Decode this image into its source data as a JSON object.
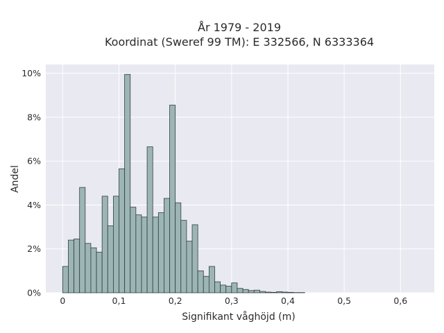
{
  "chart_data": {
    "type": "bar",
    "title_line1": "År 1979 - 2019",
    "title_line2": "Koordinat (Sweref 99 TM): E 332566, N 6333364",
    "xlabel": "Signifikant våghöjd (m)",
    "ylabel": "Andel",
    "bin_width": 0.01,
    "bin_start": 0.0,
    "xlim": [
      -0.03,
      0.66
    ],
    "ylim": [
      0,
      10.4
    ],
    "grid": true,
    "x_ticks": [
      {
        "value": 0.0,
        "label": "0"
      },
      {
        "value": 0.1,
        "label": "0,1"
      },
      {
        "value": 0.2,
        "label": "0,2"
      },
      {
        "value": 0.3,
        "label": "0,3"
      },
      {
        "value": 0.4,
        "label": "0,4"
      },
      {
        "value": 0.5,
        "label": "0,5"
      },
      {
        "value": 0.6,
        "label": "0,6"
      }
    ],
    "y_ticks": [
      {
        "value": 0,
        "label": "0%"
      },
      {
        "value": 2,
        "label": "2%"
      },
      {
        "value": 4,
        "label": "4%"
      },
      {
        "value": 6,
        "label": "6%"
      },
      {
        "value": 8,
        "label": "8%"
      },
      {
        "value": 10,
        "label": "10%"
      }
    ],
    "values": [
      1.2,
      2.4,
      2.45,
      4.8,
      2.25,
      2.05,
      1.85,
      4.4,
      3.05,
      4.4,
      5.65,
      9.95,
      3.9,
      3.55,
      3.45,
      6.65,
      3.45,
      3.65,
      4.3,
      8.55,
      4.1,
      3.3,
      2.35,
      3.1,
      1.0,
      0.75,
      1.2,
      0.5,
      0.35,
      0.3,
      0.45,
      0.2,
      0.15,
      0.1,
      0.12,
      0.06,
      0.03,
      0.02,
      0.05,
      0.03,
      0.02,
      0.01,
      0.01
    ],
    "colors": {
      "background": "#e9e9f1",
      "bar_fill": "#9db5b5",
      "bar_edge": "#2f3f3f",
      "grid": "#ffffff"
    }
  }
}
